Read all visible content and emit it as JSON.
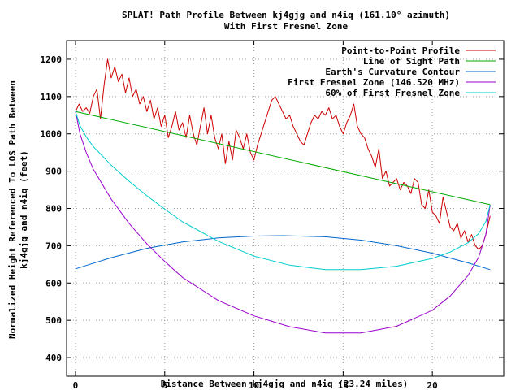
{
  "chart_data": {
    "type": "line",
    "title_line1": "SPLAT! Path Profile Between kj4gjg and n4iq (161.10° azimuth)",
    "title_line2": "With First Fresnel Zone",
    "xlabel": "Distance Between kj4gjg and n4iq (23.24 miles)",
    "ylabel_line1": "Normalized Height Referenced To LOS Path Between",
    "ylabel_line2": "kj4gjg and n4iq (feet)",
    "xlim": [
      -0.5,
      24.0
    ],
    "ylim": [
      350,
      1250
    ],
    "xticks": [
      0,
      5,
      10,
      15,
      20
    ],
    "yticks": [
      400,
      500,
      600,
      700,
      800,
      900,
      1000,
      1100,
      1200
    ],
    "grid": true,
    "legend_position": "top-right",
    "path_length_miles": 23.24,
    "series": [
      {
        "name": "Point-to-Point Profile",
        "color": "#cc0000",
        "x": [
          0,
          0.2,
          0.4,
          0.6,
          0.8,
          1.0,
          1.2,
          1.4,
          1.6,
          1.8,
          2.0,
          2.2,
          2.4,
          2.6,
          2.8,
          3.0,
          3.2,
          3.4,
          3.6,
          3.8,
          4.0,
          4.2,
          4.4,
          4.6,
          4.8,
          5.0,
          5.2,
          5.4,
          5.6,
          5.8,
          6.0,
          6.2,
          6.4,
          6.6,
          6.8,
          7.0,
          7.2,
          7.4,
          7.6,
          7.8,
          8.0,
          8.2,
          8.4,
          8.6,
          8.8,
          9.0,
          9.2,
          9.4,
          9.6,
          9.8,
          10.0,
          10.2,
          10.4,
          10.6,
          10.8,
          11.0,
          11.2,
          11.4,
          11.6,
          11.8,
          12.0,
          12.2,
          12.4,
          12.6,
          12.8,
          13.0,
          13.2,
          13.4,
          13.6,
          13.8,
          14.0,
          14.2,
          14.4,
          14.6,
          14.8,
          15.0,
          15.2,
          15.4,
          15.6,
          15.8,
          16.0,
          16.2,
          16.4,
          16.6,
          16.8,
          17.0,
          17.2,
          17.4,
          17.6,
          17.8,
          18.0,
          18.2,
          18.4,
          18.6,
          18.8,
          19.0,
          19.2,
          19.4,
          19.6,
          19.8,
          20.0,
          20.2,
          20.4,
          20.6,
          20.8,
          21.0,
          21.2,
          21.4,
          21.6,
          21.8,
          22.0,
          22.2,
          22.4,
          22.6,
          22.8,
          23.0,
          23.24
        ],
        "values": [
          1060,
          1080,
          1060,
          1070,
          1055,
          1100,
          1120,
          1040,
          1130,
          1200,
          1150,
          1180,
          1140,
          1160,
          1110,
          1150,
          1100,
          1120,
          1080,
          1100,
          1060,
          1090,
          1040,
          1070,
          1020,
          1050,
          990,
          1020,
          1060,
          1010,
          1030,
          990,
          1050,
          1000,
          970,
          1020,
          1070,
          1000,
          1050,
          990,
          960,
          1000,
          920,
          980,
          930,
          1010,
          990,
          960,
          1000,
          950,
          930,
          970,
          1000,
          1030,
          1060,
          1090,
          1100,
          1080,
          1060,
          1040,
          1050,
          1020,
          1000,
          980,
          970,
          1000,
          1030,
          1050,
          1040,
          1060,
          1050,
          1070,
          1040,
          1050,
          1020,
          1000,
          1030,
          1050,
          1080,
          1020,
          1000,
          990,
          960,
          940,
          910,
          960,
          880,
          900,
          860,
          870,
          880,
          850,
          870,
          860,
          840,
          880,
          870,
          810,
          800,
          850,
          790,
          780,
          760,
          830,
          790,
          750,
          740,
          760,
          720,
          740,
          710,
          730,
          700,
          690,
          700,
          730,
          780
        ]
      },
      {
        "name": "Line of Sight Path",
        "color": "#00aa00",
        "x": [
          0,
          23.24
        ],
        "values": [
          1060,
          810
        ]
      },
      {
        "name": "Earth's Curvature Contour",
        "color": "#0066cc",
        "x": [
          0,
          2,
          4,
          6,
          8,
          10,
          11.62,
          14,
          16,
          18,
          20,
          22,
          23.24
        ],
        "values": [
          638,
          668,
          693,
          710,
          721,
          726,
          727,
          724,
          715,
          700,
          680,
          654,
          636
        ]
      },
      {
        "name": "First Fresnel Zone (146.520 MHz)",
        "color": "#9900cc",
        "x": [
          0,
          0.25,
          0.6,
          1,
          2,
          3,
          4,
          5,
          6,
          8,
          10,
          12,
          14,
          16,
          18,
          20,
          21,
          22,
          22.6,
          23,
          23.24
        ],
        "values": [
          1060,
          1000,
          950,
          905,
          825,
          760,
          705,
          658,
          615,
          553,
          512,
          483,
          466,
          466,
          484,
          527,
          565,
          620,
          670,
          730,
          810
        ]
      },
      {
        "name": "60% of First Fresnel Zone",
        "color": "#00cccc",
        "x": [
          0,
          0.25,
          0.6,
          1,
          2,
          3,
          4,
          5,
          6,
          8,
          10,
          12,
          14,
          16,
          18,
          20,
          21,
          22,
          22.6,
          23,
          23.24
        ],
        "values": [
          1060,
          1022,
          992,
          966,
          916,
          873,
          834,
          798,
          764,
          712,
          672,
          648,
          636,
          636,
          645,
          666,
          683,
          708,
          733,
          765,
          810
        ]
      }
    ]
  }
}
